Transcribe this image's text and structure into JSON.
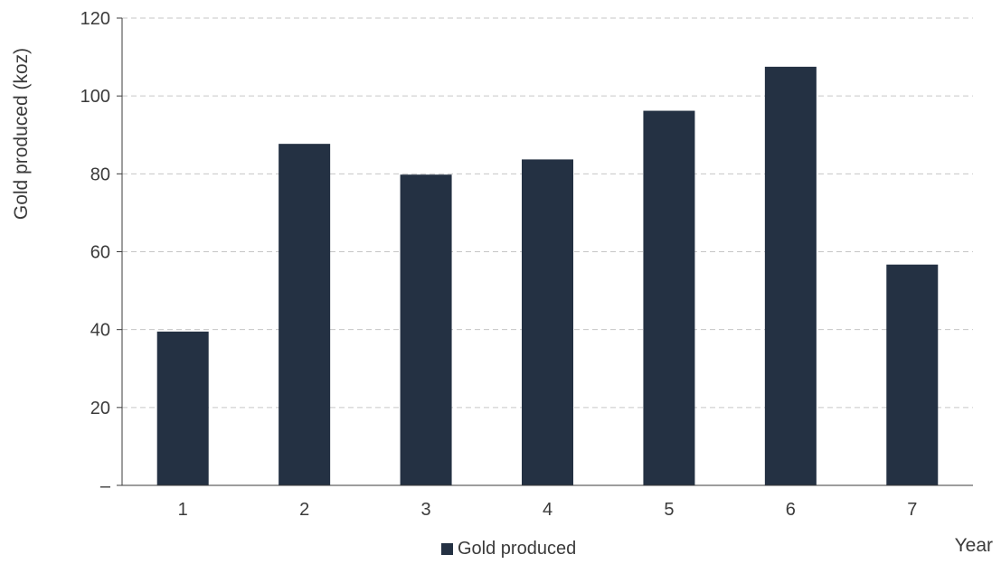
{
  "chart_data": {
    "type": "bar",
    "categories": [
      "1",
      "2",
      "3",
      "4",
      "5",
      "6",
      "7"
    ],
    "series": [
      {
        "name": "Gold produced",
        "values": [
          39.5,
          87.7,
          79.8,
          83.7,
          96.2,
          107.5,
          56.7
        ]
      }
    ],
    "title": "",
    "xlabel": "Year",
    "ylabel": "Gold produced (koz)",
    "ylim": [
      0,
      120
    ],
    "yticks": [
      0,
      20,
      40,
      60,
      80,
      100,
      120
    ],
    "ytick_labels": [
      "–",
      "20",
      "40",
      "60",
      "80",
      "100",
      "120"
    ],
    "grid": true,
    "legend_position": "bottom-center",
    "colors": {
      "bar": "#243143",
      "grid": "#c6c6c6",
      "axis": "#3b3b3b",
      "text": "#3b3b3b"
    }
  }
}
